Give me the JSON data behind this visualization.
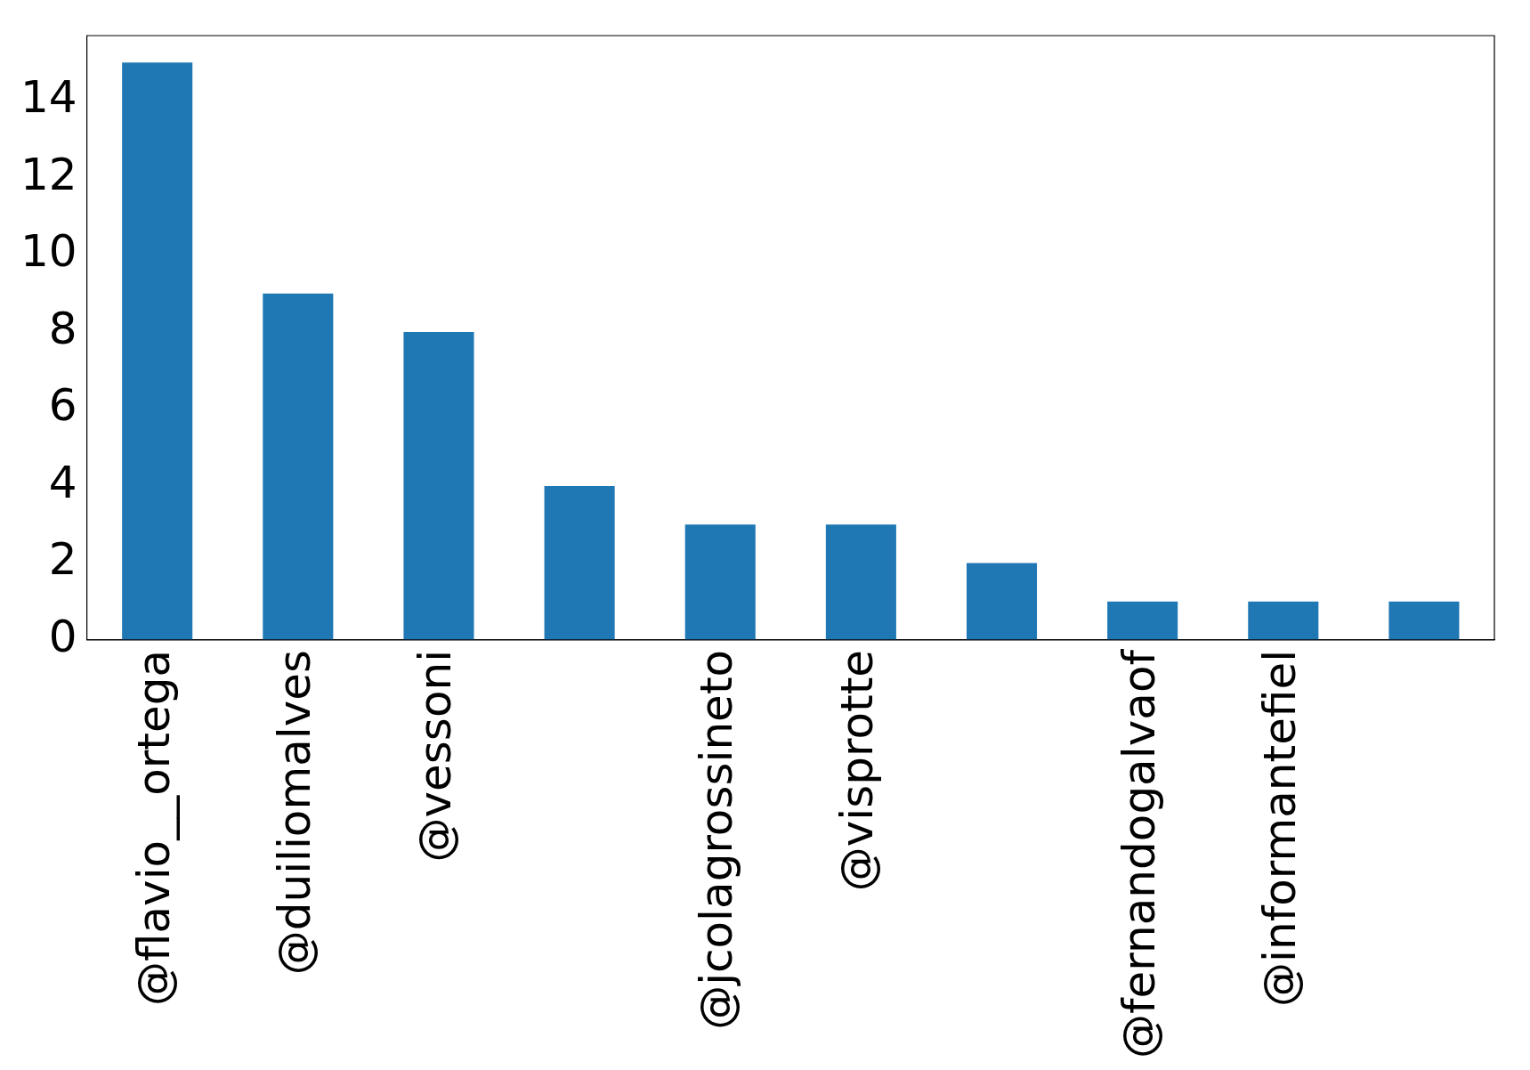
{
  "chart_data": {
    "type": "bar",
    "categories": [
      "@flavio__ortega",
      "@duiliomalves",
      "@vessoni",
      null,
      "@jcolagrossineto",
      "@visprotte",
      null,
      "@fernandogalvaof",
      "@informantefiel",
      null
    ],
    "values": [
      15,
      9,
      8,
      4,
      3,
      3,
      2,
      1,
      1,
      1
    ],
    "color": "#1f77b4",
    "ylim": [
      0,
      15.7
    ],
    "yticks": [
      0,
      2,
      4,
      6,
      8,
      10,
      12,
      14
    ],
    "grid": false,
    "legend": false
  }
}
